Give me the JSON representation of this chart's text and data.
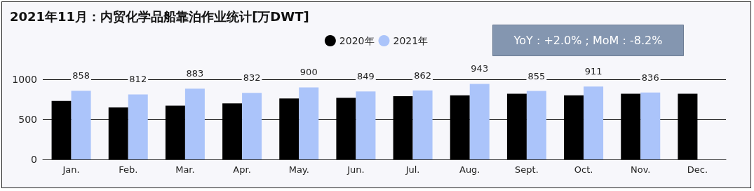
{
  "chart_data": {
    "type": "bar",
    "title": "2021年11月：内贸化学品船靠泊作业统计[万DWT]",
    "categories": [
      "Jan.",
      "Feb.",
      "Mar.",
      "Apr.",
      "May.",
      "Jun.",
      "Jul.",
      "Aug.",
      "Sept.",
      "Oct.",
      "Nov.",
      "Dec."
    ],
    "series": [
      {
        "name": "2020年",
        "color": "#000000",
        "values": [
          730,
          650,
          670,
          700,
          760,
          770,
          790,
          800,
          820,
          800,
          820,
          820
        ]
      },
      {
        "name": "2021年",
        "color": "#abc4fa",
        "values": [
          858,
          812,
          883,
          832,
          900,
          849,
          862,
          943,
          855,
          911,
          836,
          null
        ],
        "value_labels": [
          "858",
          "812",
          "883",
          "832",
          "900",
          "849",
          "862",
          "943",
          "855",
          "911",
          "836",
          null
        ]
      }
    ],
    "ylim": [
      0,
      1000
    ],
    "yticks": [
      0,
      500,
      1000
    ],
    "grid": "y",
    "legend": "top",
    "annotations": [
      "YoY : +2.0% ; MoM : -8.2%"
    ]
  }
}
